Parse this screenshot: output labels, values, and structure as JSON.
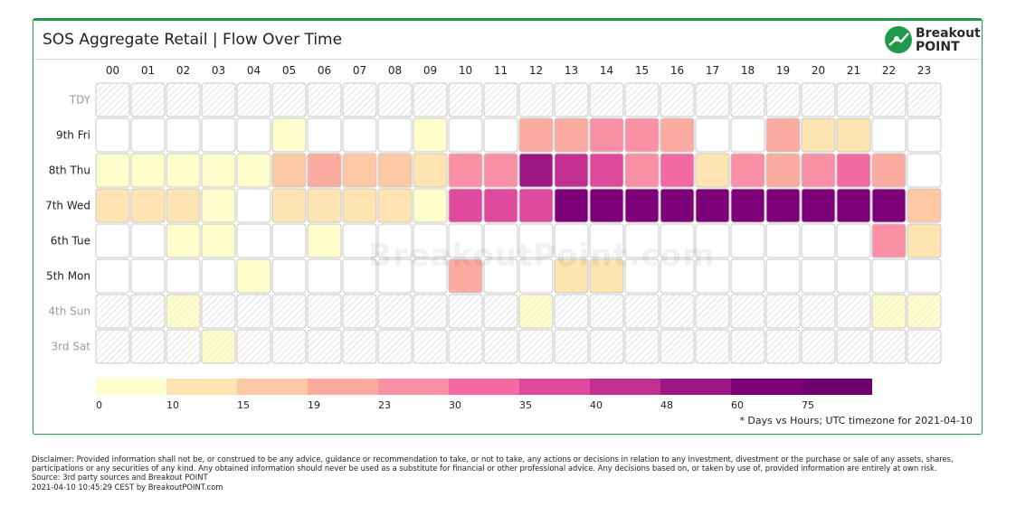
{
  "header": {
    "title": "SOS Aggregate Retail | Flow Over Time",
    "logo_line1": "Breakout",
    "logo_line2": "POINT"
  },
  "watermark": "BreakoutPoint.com",
  "footnote": "* Days vs Hours; UTC timezone for 2021-04-10",
  "disclaimer": {
    "line1": "Disclaimer: Provided information shall not be, or construed to be any advice, guidance or recommendation to take, or not to take, any actions or decisions in relation to any investment, divestment or the purchase or sale of any assets, shares,",
    "line2": "participations or any securities of any kind. Any obtained information should never be used as a substitute for financial or other professional advice. Any decisions based on, or taken by use of, provided information are entirely at own risk.",
    "line3": "Source: 3rd party sources and Breakout POINT",
    "line4": "2021-04-10 10:45:29 CEST by BreakoutPOINT.com"
  },
  "colors": {
    "brand": "#1e9a4a",
    "cell_border": "#c8c8c8",
    "weekend_hatch": "#d0d0d0"
  },
  "chart_data": {
    "type": "heatmap",
    "x_labels": [
      "00",
      "01",
      "02",
      "03",
      "04",
      "05",
      "06",
      "07",
      "08",
      "09",
      "10",
      "11",
      "12",
      "13",
      "14",
      "15",
      "16",
      "17",
      "18",
      "19",
      "20",
      "21",
      "22",
      "23"
    ],
    "rows": [
      {
        "label": "TDY",
        "muted": true,
        "hatched": true,
        "levels": [
          null,
          null,
          null,
          null,
          null,
          null,
          null,
          null,
          null,
          null,
          null,
          null,
          null,
          null,
          null,
          null,
          null,
          null,
          null,
          null,
          null,
          null,
          null,
          null
        ]
      },
      {
        "label": "9th Fri",
        "muted": false,
        "hatched": false,
        "levels": [
          null,
          null,
          null,
          null,
          null,
          0,
          null,
          null,
          null,
          0,
          null,
          null,
          3,
          3,
          4,
          4,
          3,
          null,
          null,
          3,
          1,
          1,
          null,
          null
        ]
      },
      {
        "label": "8th Thu",
        "muted": false,
        "hatched": false,
        "levels": [
          0,
          0,
          0,
          0,
          0,
          2,
          3,
          2,
          2,
          1,
          4,
          4,
          8,
          7,
          6,
          4,
          5,
          1,
          4,
          3,
          4,
          5,
          3,
          null
        ]
      },
      {
        "label": "7th Wed",
        "muted": false,
        "hatched": false,
        "levels": [
          1,
          1,
          1,
          0,
          null,
          1,
          1,
          1,
          1,
          0,
          6,
          6,
          6,
          9,
          9,
          9,
          9,
          9,
          9,
          9,
          9,
          9,
          9,
          2
        ]
      },
      {
        "label": "6th Tue",
        "muted": false,
        "hatched": false,
        "levels": [
          null,
          null,
          0,
          0,
          null,
          null,
          0,
          null,
          null,
          null,
          null,
          null,
          null,
          null,
          null,
          null,
          null,
          null,
          null,
          null,
          null,
          null,
          4,
          1
        ]
      },
      {
        "label": "5th Mon",
        "muted": false,
        "hatched": false,
        "levels": [
          null,
          null,
          null,
          null,
          0,
          null,
          null,
          null,
          null,
          null,
          3,
          null,
          null,
          1,
          1,
          null,
          null,
          null,
          null,
          null,
          null,
          null,
          null,
          null
        ]
      },
      {
        "label": "4th Sun",
        "muted": true,
        "hatched": true,
        "levels": [
          null,
          null,
          0,
          null,
          null,
          null,
          null,
          null,
          null,
          null,
          null,
          null,
          0,
          null,
          null,
          null,
          null,
          null,
          null,
          null,
          null,
          null,
          0,
          0
        ]
      },
      {
        "label": "3rd Sat",
        "muted": true,
        "hatched": true,
        "levels": [
          null,
          null,
          null,
          0,
          null,
          null,
          null,
          null,
          null,
          null,
          null,
          null,
          null,
          null,
          null,
          null,
          null,
          null,
          null,
          null,
          null,
          null,
          null,
          null
        ]
      }
    ],
    "scale_colors": [
      "#fefecd",
      "#fde4b0",
      "#fdc8a4",
      "#fcaba0",
      "#f990a6",
      "#f36aa3",
      "#e04a9d",
      "#c2308f",
      "#9e1684",
      "#7e0079",
      "#70006f"
    ],
    "scale_labels": [
      "0",
      "10",
      "15",
      "19",
      "23",
      "30",
      "35",
      "40",
      "48",
      "60",
      "75"
    ],
    "legend_position": "bottom",
    "xlabel": "",
    "ylabel": ""
  }
}
